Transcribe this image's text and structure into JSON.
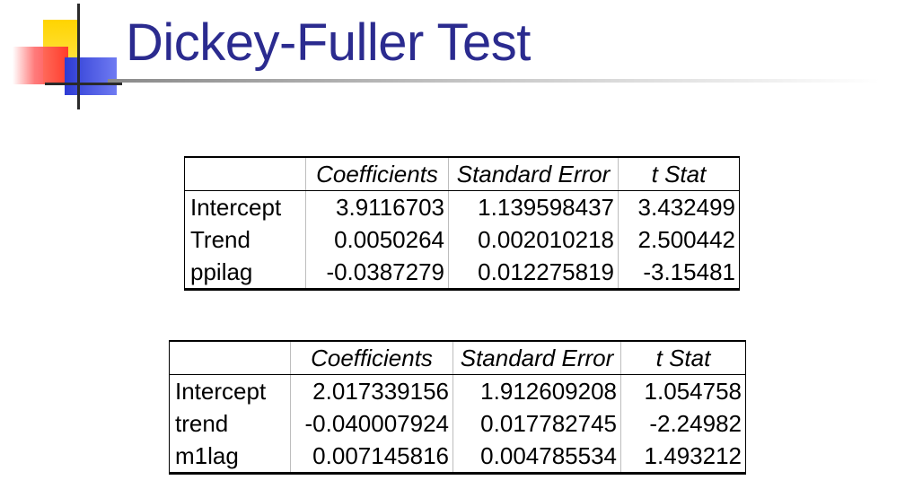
{
  "slide": {
    "title": "Dickey-Fuller Test",
    "logo_icon": "squares-logo-icon",
    "colors": {
      "title": "#2b2b8f",
      "logo_yellow": "#ffd400",
      "logo_red": "#ff2a2a",
      "logo_blue": "#2d3bd4"
    }
  },
  "table1": {
    "headers": [
      "",
      "Coefficients",
      "Standard Error",
      "t Stat"
    ],
    "rows": [
      {
        "label": "Intercept",
        "coefficient": "3.9116703",
        "std_error": "1.139598437",
        "t_stat": "3.432499"
      },
      {
        "label": "Trend",
        "coefficient": "0.0050264",
        "std_error": "0.002010218",
        "t_stat": "2.500442"
      },
      {
        "label": "ppilag",
        "coefficient": "-0.0387279",
        "std_error": "0.012275819",
        "t_stat": "-3.15481"
      }
    ]
  },
  "table2": {
    "headers": [
      "",
      "Coefficients",
      "Standard Error",
      "t Stat"
    ],
    "rows": [
      {
        "label": "Intercept",
        "coefficient": "2.017339156",
        "std_error": "1.912609208",
        "t_stat": "1.054758"
      },
      {
        "label": "trend",
        "coefficient": "-0.040007924",
        "std_error": "0.017782745",
        "t_stat": "-2.24982"
      },
      {
        "label": "m1lag",
        "coefficient": "0.007145816",
        "std_error": "0.004785534",
        "t_stat": "1.493212"
      }
    ]
  }
}
